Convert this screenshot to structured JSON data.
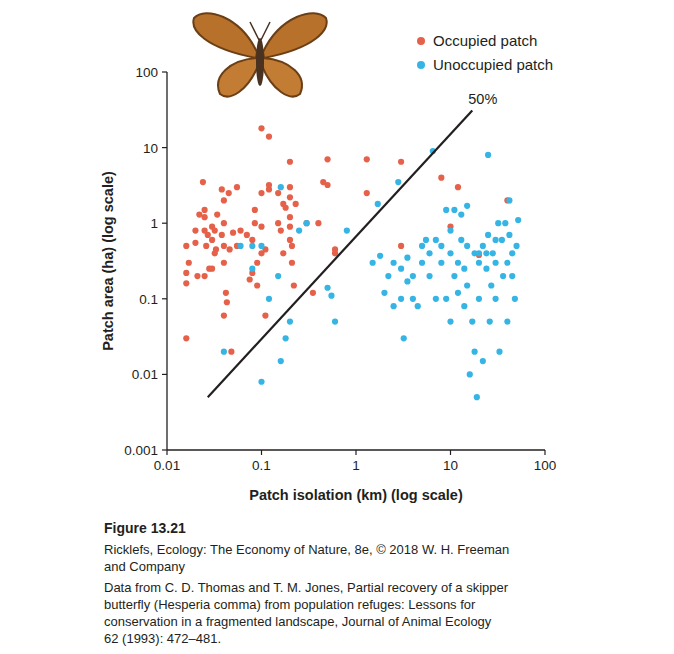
{
  "chart_data": {
    "type": "scatter",
    "log": true,
    "x_label": "Patch isolation (km) (log scale)",
    "y_label": "Patch area (ha) (log scale)",
    "xlim": [
      0.01,
      100
    ],
    "xticks": [
      0.01,
      0.1,
      1,
      10,
      100
    ],
    "ylim": [
      0.001,
      100
    ],
    "yticks": [
      0.001,
      0.01,
      0.1,
      1,
      10,
      100
    ],
    "legend": "upper right",
    "series": [
      {
        "name": "Occupied patch",
        "color": "#e5614a",
        "marker": "circle",
        "x": [
          0.016,
          0.016,
          0.016,
          0.016,
          0.017,
          0.02,
          0.021,
          0.022,
          0.02,
          0.024,
          0.025,
          0.025,
          0.025,
          0.026,
          0.027,
          0.025,
          0.028,
          0.03,
          0.032,
          0.03,
          0.033,
          0.034,
          0.03,
          0.032,
          0.038,
          0.04,
          0.04,
          0.038,
          0.04,
          0.04,
          0.042,
          0.04,
          0.043,
          0.045,
          0.046,
          0.05,
          0.048,
          0.055,
          0.055,
          0.06,
          0.07,
          0.075,
          0.08,
          0.085,
          0.085,
          0.09,
          0.09,
          0.1,
          0.08,
          0.1,
          0.1,
          0.1,
          0.11,
          0.11,
          0.12,
          0.12,
          0.12,
          0.15,
          0.15,
          0.16,
          0.17,
          0.17,
          0.18,
          0.2,
          0.2,
          0.2,
          0.2,
          0.2,
          0.2,
          0.21,
          0.21,
          0.22,
          0.23,
          0.3,
          0.35,
          0.4,
          0.45,
          0.5,
          0.5,
          0.6,
          0.6,
          1.3,
          1.3,
          3,
          3,
          8,
          10,
          12,
          20,
          40
        ],
        "values": [
          0.03,
          0.16,
          0.22,
          0.5,
          0.3,
          0.55,
          0.2,
          1.3,
          0.8,
          3.5,
          1.5,
          1.2,
          0.8,
          0.5,
          0.7,
          0.2,
          0.25,
          0.9,
          0.8,
          0.25,
          0.45,
          1.3,
          0.6,
          0.4,
          2.8,
          2.0,
          1.0,
          0.7,
          0.5,
          0.3,
          0.12,
          0.06,
          0.09,
          2.5,
          0.45,
          0.75,
          0.02,
          3.0,
          0.5,
          0.8,
          0.7,
          0.18,
          0.22,
          1.5,
          1.0,
          0.3,
          0.15,
          0.4,
          0.6,
          18,
          2.5,
          0.9,
          0.06,
          0.45,
          14,
          2.8,
          3.2,
          2.5,
          1.0,
          0.8,
          1.8,
          0.4,
          1.6,
          6.5,
          3,
          2.2,
          1.2,
          0.9,
          0.6,
          0.3,
          0.5,
          0.15,
          1.8,
          1.0,
          0.12,
          1.0,
          3.5,
          3.2,
          7,
          0.45,
          0.4,
          7,
          2.5,
          6.5,
          0.5,
          4,
          0.9,
          3,
          0.38,
          2.0
        ]
      },
      {
        "name": "Unoccupied patch",
        "color": "#36b5e5",
        "marker": "circle",
        "x": [
          0.04,
          0.06,
          0.08,
          0.08,
          0.1,
          0.1,
          0.12,
          0.16,
          0.16,
          0.18,
          0.15,
          0.2,
          0.25,
          0.3,
          0.5,
          0.55,
          0.6,
          0.8,
          1.5,
          1.7,
          1.8,
          2,
          2.2,
          2.5,
          2.5,
          2.8,
          3,
          3,
          3.2,
          3.5,
          3.5,
          4,
          4,
          4.5,
          5,
          5,
          5.5,
          6,
          6,
          6.5,
          7,
          7,
          8,
          8,
          9,
          9,
          10,
          10,
          10,
          11,
          11,
          12,
          12,
          13,
          13,
          14,
          14,
          15,
          15,
          15,
          16,
          17,
          18,
          18,
          19,
          20,
          20,
          20,
          22,
          22,
          24,
          24,
          25,
          25,
          26,
          27,
          28,
          30,
          30,
          30,
          32,
          33,
          35,
          36,
          38,
          40,
          40,
          42,
          42,
          45,
          45,
          48,
          50,
          52
        ],
        "values": [
          0.02,
          0.5,
          0.5,
          0.25,
          0.5,
          0.008,
          0.1,
          3,
          0.015,
          0.03,
          0.2,
          0.05,
          0.8,
          1.0,
          0.14,
          0.11,
          0.05,
          0.8,
          0.3,
          1.8,
          0.37,
          0.12,
          0.2,
          0.08,
          0.3,
          3.5,
          0.25,
          0.1,
          0.03,
          0.17,
          0.35,
          0.2,
          0.1,
          0.08,
          0.3,
          0.5,
          0.6,
          0.4,
          0.2,
          9,
          0.1,
          0.6,
          0.3,
          0.5,
          0.1,
          1.5,
          0.8,
          0.4,
          0.05,
          0.2,
          1.5,
          0.3,
          0.12,
          1.3,
          0.6,
          0.25,
          0.08,
          0.5,
          1.7,
          0.15,
          0.01,
          0.05,
          0.4,
          0.02,
          0.005,
          0.4,
          0.3,
          0.1,
          0.015,
          0.5,
          0.4,
          0.25,
          8,
          0.7,
          0.05,
          0.15,
          0.4,
          0.6,
          0.3,
          0.1,
          1.0,
          0.02,
          0.6,
          0.2,
          1.0,
          0.3,
          0.05,
          2.0,
          0.7,
          0.2,
          0.4,
          0.1,
          0.5,
          1.1
        ]
      }
    ],
    "reference_line": {
      "label": "50%",
      "x": [
        0.027,
        17
      ],
      "values": [
        0.005,
        31
      ]
    },
    "figure_label": "Figure 13.21",
    "source_lines": [
      "Ricklefs, Ecology: The Economy of Nature, 8e, © 2018 W. H. Freeman",
      "and Company",
      "Data from C. D. Thomas and T. M. Jones, Partial recovery of a skipper",
      "butterfly (Hesperia comma) from population refuges: Lessons for",
      "conservation in a fragmented landscape, Journal of Animal Ecology",
      "62 (1993): 472–481."
    ]
  }
}
